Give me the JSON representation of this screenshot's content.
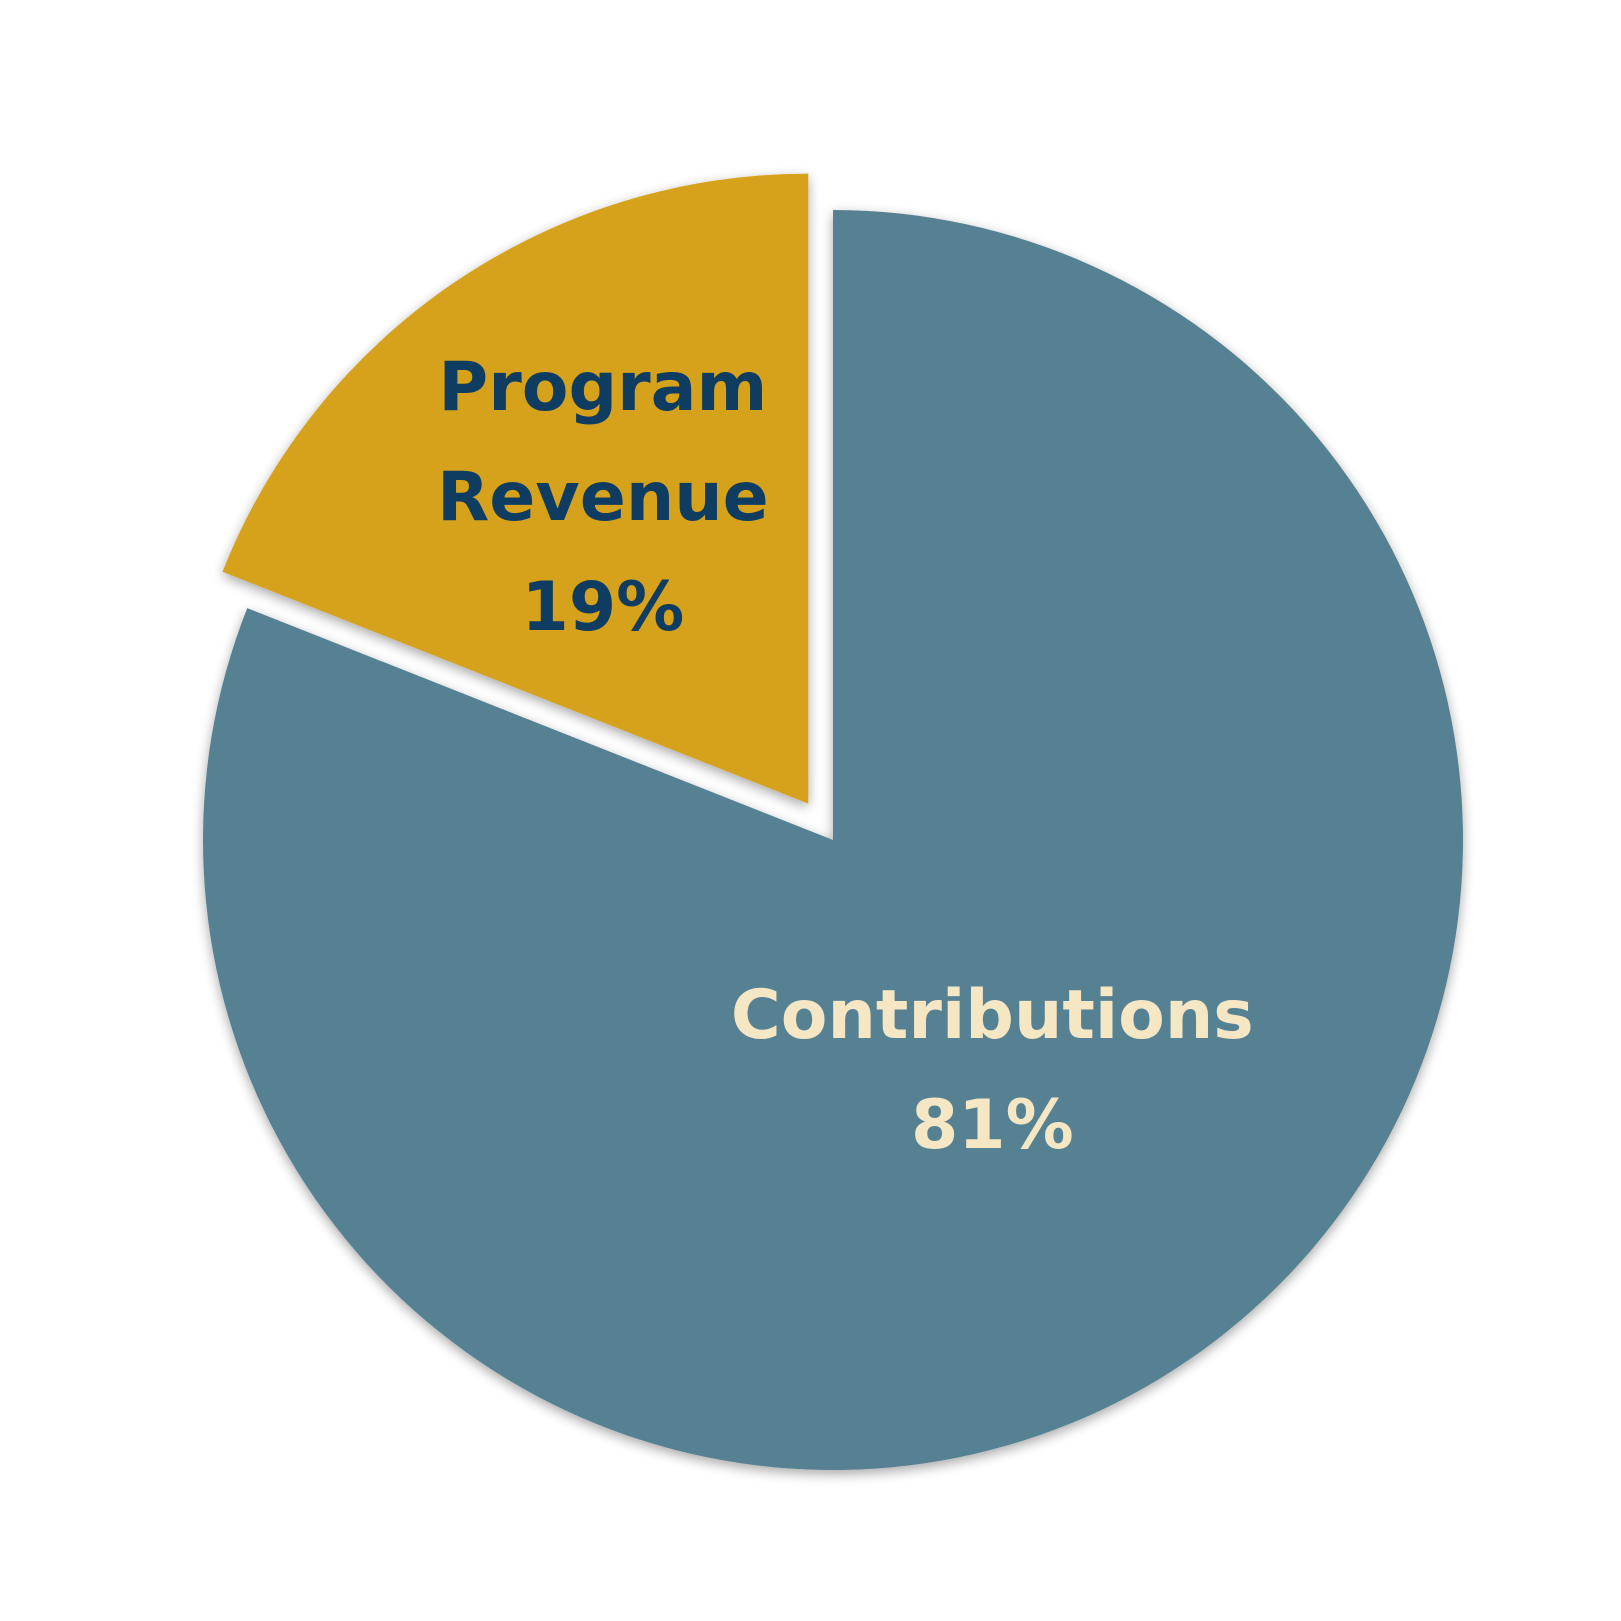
{
  "chart_data": {
    "type": "pie",
    "title": "",
    "slices": [
      {
        "category": "Contributions",
        "value": 81,
        "value_label": "81%",
        "color": "#558193",
        "label_color": "#F5E6C4",
        "exploded": false
      },
      {
        "category": "Program Revenue",
        "category_lines": [
          "Program",
          "Revenue"
        ],
        "value": 19,
        "value_label": "19%",
        "color": "#D6A21E",
        "label_color": "#0F3D62",
        "exploded": true
      }
    ],
    "start_angle": "12 o'clock",
    "direction": "clockwise",
    "legend": "none"
  }
}
